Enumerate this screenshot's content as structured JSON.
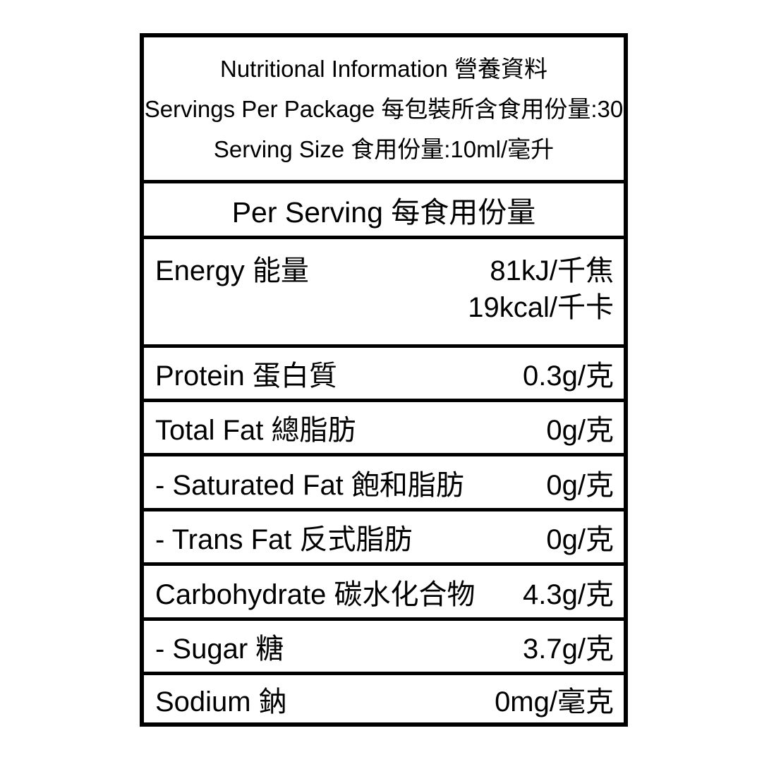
{
  "label": {
    "colors": {
      "border": "#000000",
      "text": "#000000",
      "background": "#ffffff"
    },
    "header": {
      "title": "Nutritional Information 營養資料",
      "servings_per_package": "Servings Per Package 每包裝所含食用份量:30",
      "serving_size": "Serving Size 食用份量:10ml/毫升"
    },
    "column_header": "Per Serving 每食用份量",
    "rows": [
      {
        "name": "Energy 能量",
        "values": [
          "81kJ/千焦",
          "19kcal/千卡"
        ]
      },
      {
        "name": "Protein 蛋白質",
        "value": "0.3g/克"
      },
      {
        "name": "Total Fat 總脂肪",
        "value": "0g/克"
      },
      {
        "name": "- Saturated Fat 飽和脂肪",
        "value": "0g/克"
      },
      {
        "name": "- Trans Fat 反式脂肪",
        "value": "0g/克"
      },
      {
        "name": "Carbohydrate 碳水化合物",
        "value": "4.3g/克"
      },
      {
        "name": "- Sugar 糖",
        "value": "3.7g/克"
      },
      {
        "name": "Sodium 鈉",
        "value": "0mg/毫克"
      }
    ]
  }
}
